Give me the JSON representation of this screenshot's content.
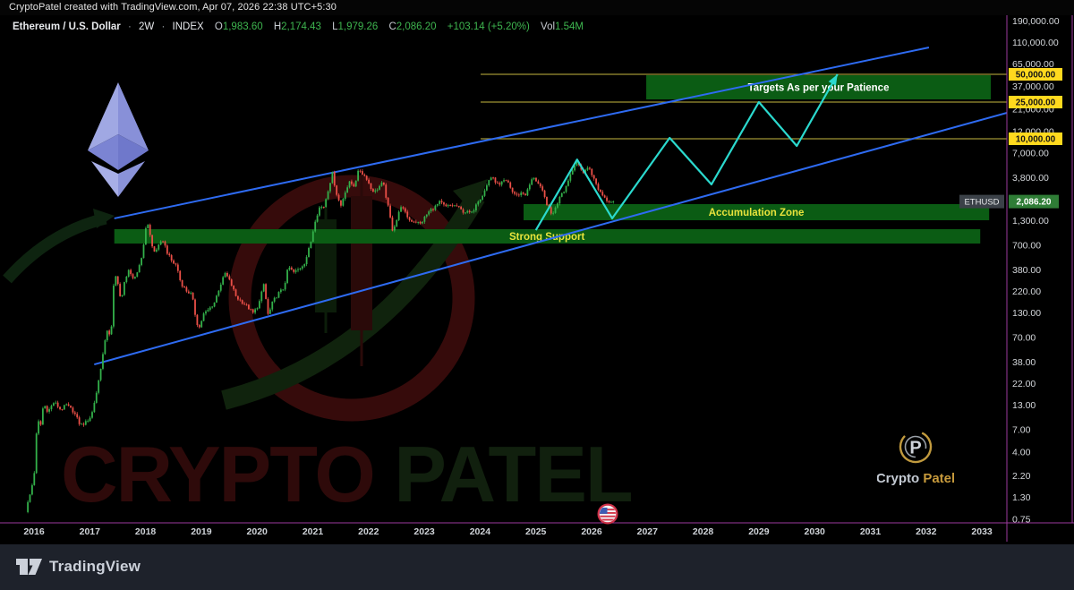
{
  "attribution": {
    "text": "CryptoPatel created with TradingView.com, Apr 07, 2026 22:38 UTC+5:30"
  },
  "header": {
    "symbol": "Ethereum / U.S. Dollar",
    "separator": "·",
    "timeframe": "2W",
    "source": "INDEX",
    "o_label": "O",
    "o": "1,983.60",
    "h_label": "H",
    "h": "2,174.43",
    "l_label": "L",
    "l": "1,979.26",
    "c_label": "C",
    "c": "2,086.20",
    "change": "+103.14 (+5.20%)",
    "vol_label": "Vol",
    "vol": "1.54M"
  },
  "watermarks": {
    "big_1": "CRYPTO",
    "big_2": "PATEL",
    "emblem_p": "P",
    "emblem_1": "Crypto",
    "emblem_2": "Patel"
  },
  "footer": {
    "brand": "TradingView"
  },
  "colors": {
    "candle_up": "#33b04a",
    "candle_down": "#ea4f47",
    "trendline_blue": "#2e6bf2",
    "projection_cyan": "#2bd9ce",
    "level_yellow": "#9e9434",
    "badge_yellow": "#ffd91e",
    "badge_green": "#2f7d36",
    "zone_green": "#0b5c14",
    "zone_label_yellow": "#e9e43c",
    "axis_purple": "#9c3a9e",
    "axis_text": "#d4d7db",
    "watermark_red": "#2e0a0a",
    "watermark_green": "#11200e"
  },
  "chart_data": {
    "type": "candlestick",
    "title": "Ethereum / U.S. Dollar 2W INDEX",
    "symbol_badge": {
      "label": "ETHUSD",
      "price_label": "2,086.20",
      "price": 2086.2
    },
    "x_axis": {
      "years": [
        2016,
        2017,
        2018,
        2019,
        2020,
        2021,
        2022,
        2023,
        2024,
        2025,
        2026,
        2027,
        2028,
        2029,
        2030,
        2031,
        2032,
        2033
      ]
    },
    "y_axis": {
      "scale": "log",
      "ticks": [
        {
          "label": "190,000.00",
          "price": 190000
        },
        {
          "label": "110,000.00",
          "price": 110000
        },
        {
          "label": "65,000.00",
          "price": 65000
        },
        {
          "label": "37,000.00",
          "price": 37000
        },
        {
          "label": "21,000.00",
          "price": 21000
        },
        {
          "label": "12,000.00",
          "price": 12000
        },
        {
          "label": "7,000.00",
          "price": 7000
        },
        {
          "label": "3,800.00",
          "price": 3800
        },
        {
          "label": "1,300.00",
          "price": 1300
        },
        {
          "label": "700.00",
          "price": 700
        },
        {
          "label": "380.00",
          "price": 380
        },
        {
          "label": "220.00",
          "price": 220
        },
        {
          "label": "130.00",
          "price": 130
        },
        {
          "label": "70.00",
          "price": 70
        },
        {
          "label": "38.00",
          "price": 38
        },
        {
          "label": "22.00",
          "price": 22
        },
        {
          "label": "13.00",
          "price": 13
        },
        {
          "label": "7.00",
          "price": 7
        },
        {
          "label": "4.00",
          "price": 4
        },
        {
          "label": "2.20",
          "price": 2.2
        },
        {
          "label": "1.30",
          "price": 1.3
        },
        {
          "label": "0.75",
          "price": 0.75
        }
      ]
    },
    "levels": [
      {
        "label": "50,000.00",
        "price": 50000,
        "t_start": 2024.01,
        "t_end": 2033.45
      },
      {
        "label": "25,000.00",
        "price": 25000,
        "t_start": 2024.01,
        "t_end": 2033.45
      },
      {
        "label": "10,000.00",
        "price": 10000,
        "t_start": 2024.01,
        "t_end": 2033.45
      }
    ],
    "zones": [
      {
        "id": "targets-zone",
        "label": "Targets As per your Patience",
        "t1": 2026.98,
        "t2": 2033.16,
        "price_low": 26730,
        "price_high": 48900,
        "text_color": "#ffffff"
      },
      {
        "id": "accumulation-zone",
        "label": "Accumulation Zone",
        "t1": 2024.78,
        "t2": 2033.13,
        "price_low": 1308,
        "price_high": 1956,
        "text_color": "#e9e43c"
      },
      {
        "id": "strong-support-zone",
        "label": "Strong Support",
        "t1": 2017.44,
        "t2": 2032.97,
        "price_low": 731,
        "price_high": 1046,
        "text_color": "#e9e43c",
        "label_t": 2025.2
      }
    ],
    "trendlines": [
      {
        "id": "upper-channel",
        "t1": 2017.44,
        "p1": 1369,
        "t2": 2032.05,
        "p2": 97800
      },
      {
        "id": "lower-channel",
        "t1": 2017.08,
        "p1": 35.7,
        "t2": 2033.45,
        "p2": 19130
      }
    ],
    "projection": {
      "points": [
        [
          2025.0,
          1020
        ],
        [
          2025.74,
          5950
        ],
        [
          2026.37,
          1370
        ],
        [
          2027.4,
          10230
        ],
        [
          2028.15,
          3200
        ],
        [
          2029.0,
          25000
        ],
        [
          2029.68,
          8360
        ],
        [
          2030.41,
          50000
        ]
      ]
    },
    "candles_per_year": 26,
    "last_t": 2026.38,
    "last_close": 2086.2,
    "price_path": [
      [
        2015.87,
        0.92
      ],
      [
        2015.95,
        1.4
      ],
      [
        2016.02,
        2.2
      ],
      [
        2016.08,
        9.5
      ],
      [
        2016.13,
        7.2
      ],
      [
        2016.19,
        13.5
      ],
      [
        2016.27,
        11
      ],
      [
        2016.38,
        14
      ],
      [
        2016.5,
        11.5
      ],
      [
        2016.6,
        13
      ],
      [
        2016.73,
        11
      ],
      [
        2016.85,
        7.8
      ],
      [
        2016.95,
        8.4
      ],
      [
        2017.05,
        10
      ],
      [
        2017.15,
        19
      ],
      [
        2017.25,
        44
      ],
      [
        2017.33,
        85
      ],
      [
        2017.4,
        72
      ],
      [
        2017.46,
        350
      ],
      [
        2017.53,
        270
      ],
      [
        2017.58,
        165
      ],
      [
        2017.65,
        300
      ],
      [
        2017.72,
        385
      ],
      [
        2017.78,
        290
      ],
      [
        2017.85,
        330
      ],
      [
        2017.93,
        470
      ],
      [
        2018.0,
        760
      ],
      [
        2018.04,
        1390
      ],
      [
        2018.1,
        900
      ],
      [
        2018.16,
        580
      ],
      [
        2018.25,
        680
      ],
      [
        2018.33,
        800
      ],
      [
        2018.42,
        560
      ],
      [
        2018.5,
        460
      ],
      [
        2018.58,
        420
      ],
      [
        2018.65,
        275
      ],
      [
        2018.75,
        225
      ],
      [
        2018.85,
        205
      ],
      [
        2018.93,
        105
      ],
      [
        2018.98,
        88
      ],
      [
        2019.06,
        125
      ],
      [
        2019.15,
        140
      ],
      [
        2019.25,
        165
      ],
      [
        2019.35,
        250
      ],
      [
        2019.45,
        350
      ],
      [
        2019.55,
        270
      ],
      [
        2019.65,
        190
      ],
      [
        2019.75,
        170
      ],
      [
        2019.85,
        150
      ],
      [
        2019.95,
        128
      ],
      [
        2020.05,
        160
      ],
      [
        2020.14,
        265
      ],
      [
        2020.22,
        120
      ],
      [
        2020.3,
        170
      ],
      [
        2020.4,
        210
      ],
      [
        2020.5,
        240
      ],
      [
        2020.58,
        410
      ],
      [
        2020.68,
        355
      ],
      [
        2020.78,
        390
      ],
      [
        2020.88,
        460
      ],
      [
        2020.98,
        740
      ],
      [
        2021.06,
        1300
      ],
      [
        2021.14,
        1800
      ],
      [
        2021.22,
        1850
      ],
      [
        2021.3,
        2900
      ],
      [
        2021.37,
        4200
      ],
      [
        2021.44,
        2600
      ],
      [
        2021.52,
        1850
      ],
      [
        2021.6,
        2700
      ],
      [
        2021.68,
        3350
      ],
      [
        2021.76,
        3100
      ],
      [
        2021.85,
        4700
      ],
      [
        2021.92,
        4100
      ],
      [
        2021.98,
        3800
      ],
      [
        2022.06,
        2900
      ],
      [
        2022.13,
        2650
      ],
      [
        2022.2,
        3000
      ],
      [
        2022.28,
        3350
      ],
      [
        2022.36,
        1950
      ],
      [
        2022.45,
        1020
      ],
      [
        2022.53,
        1350
      ],
      [
        2022.6,
        1880
      ],
      [
        2022.68,
        1550
      ],
      [
        2022.76,
        1300
      ],
      [
        2022.85,
        1280
      ],
      [
        2022.95,
        1190
      ],
      [
        2023.04,
        1450
      ],
      [
        2023.12,
        1670
      ],
      [
        2023.2,
        1800
      ],
      [
        2023.3,
        2060
      ],
      [
        2023.4,
        1820
      ],
      [
        2023.5,
        1900
      ],
      [
        2023.6,
        1860
      ],
      [
        2023.7,
        1640
      ],
      [
        2023.8,
        1590
      ],
      [
        2023.88,
        1560
      ],
      [
        2023.96,
        2100
      ],
      [
        2024.04,
        2300
      ],
      [
        2024.12,
        2900
      ],
      [
        2024.2,
        3900
      ],
      [
        2024.28,
        3550
      ],
      [
        2024.36,
        3060
      ],
      [
        2024.44,
        3480
      ],
      [
        2024.52,
        3380
      ],
      [
        2024.6,
        2650
      ],
      [
        2024.68,
        2420
      ],
      [
        2024.76,
        2600
      ],
      [
        2024.84,
        2480
      ],
      [
        2024.92,
        3300
      ],
      [
        2024.98,
        3900
      ],
      [
        2025.06,
        3250
      ],
      [
        2025.14,
        2650
      ],
      [
        2025.22,
        1950
      ],
      [
        2025.3,
        1500
      ],
      [
        2025.38,
        1800
      ],
      [
        2025.46,
        2550
      ],
      [
        2025.54,
        2800
      ],
      [
        2025.62,
        3900
      ],
      [
        2025.68,
        4600
      ],
      [
        2025.74,
        5900
      ],
      [
        2025.8,
        4900
      ],
      [
        2025.86,
        4350
      ],
      [
        2025.92,
        4700
      ],
      [
        2025.98,
        4850
      ],
      [
        2026.06,
        3650
      ],
      [
        2026.14,
        2850
      ],
      [
        2026.22,
        2450
      ],
      [
        2026.3,
        2150
      ],
      [
        2026.38,
        2086
      ]
    ]
  }
}
